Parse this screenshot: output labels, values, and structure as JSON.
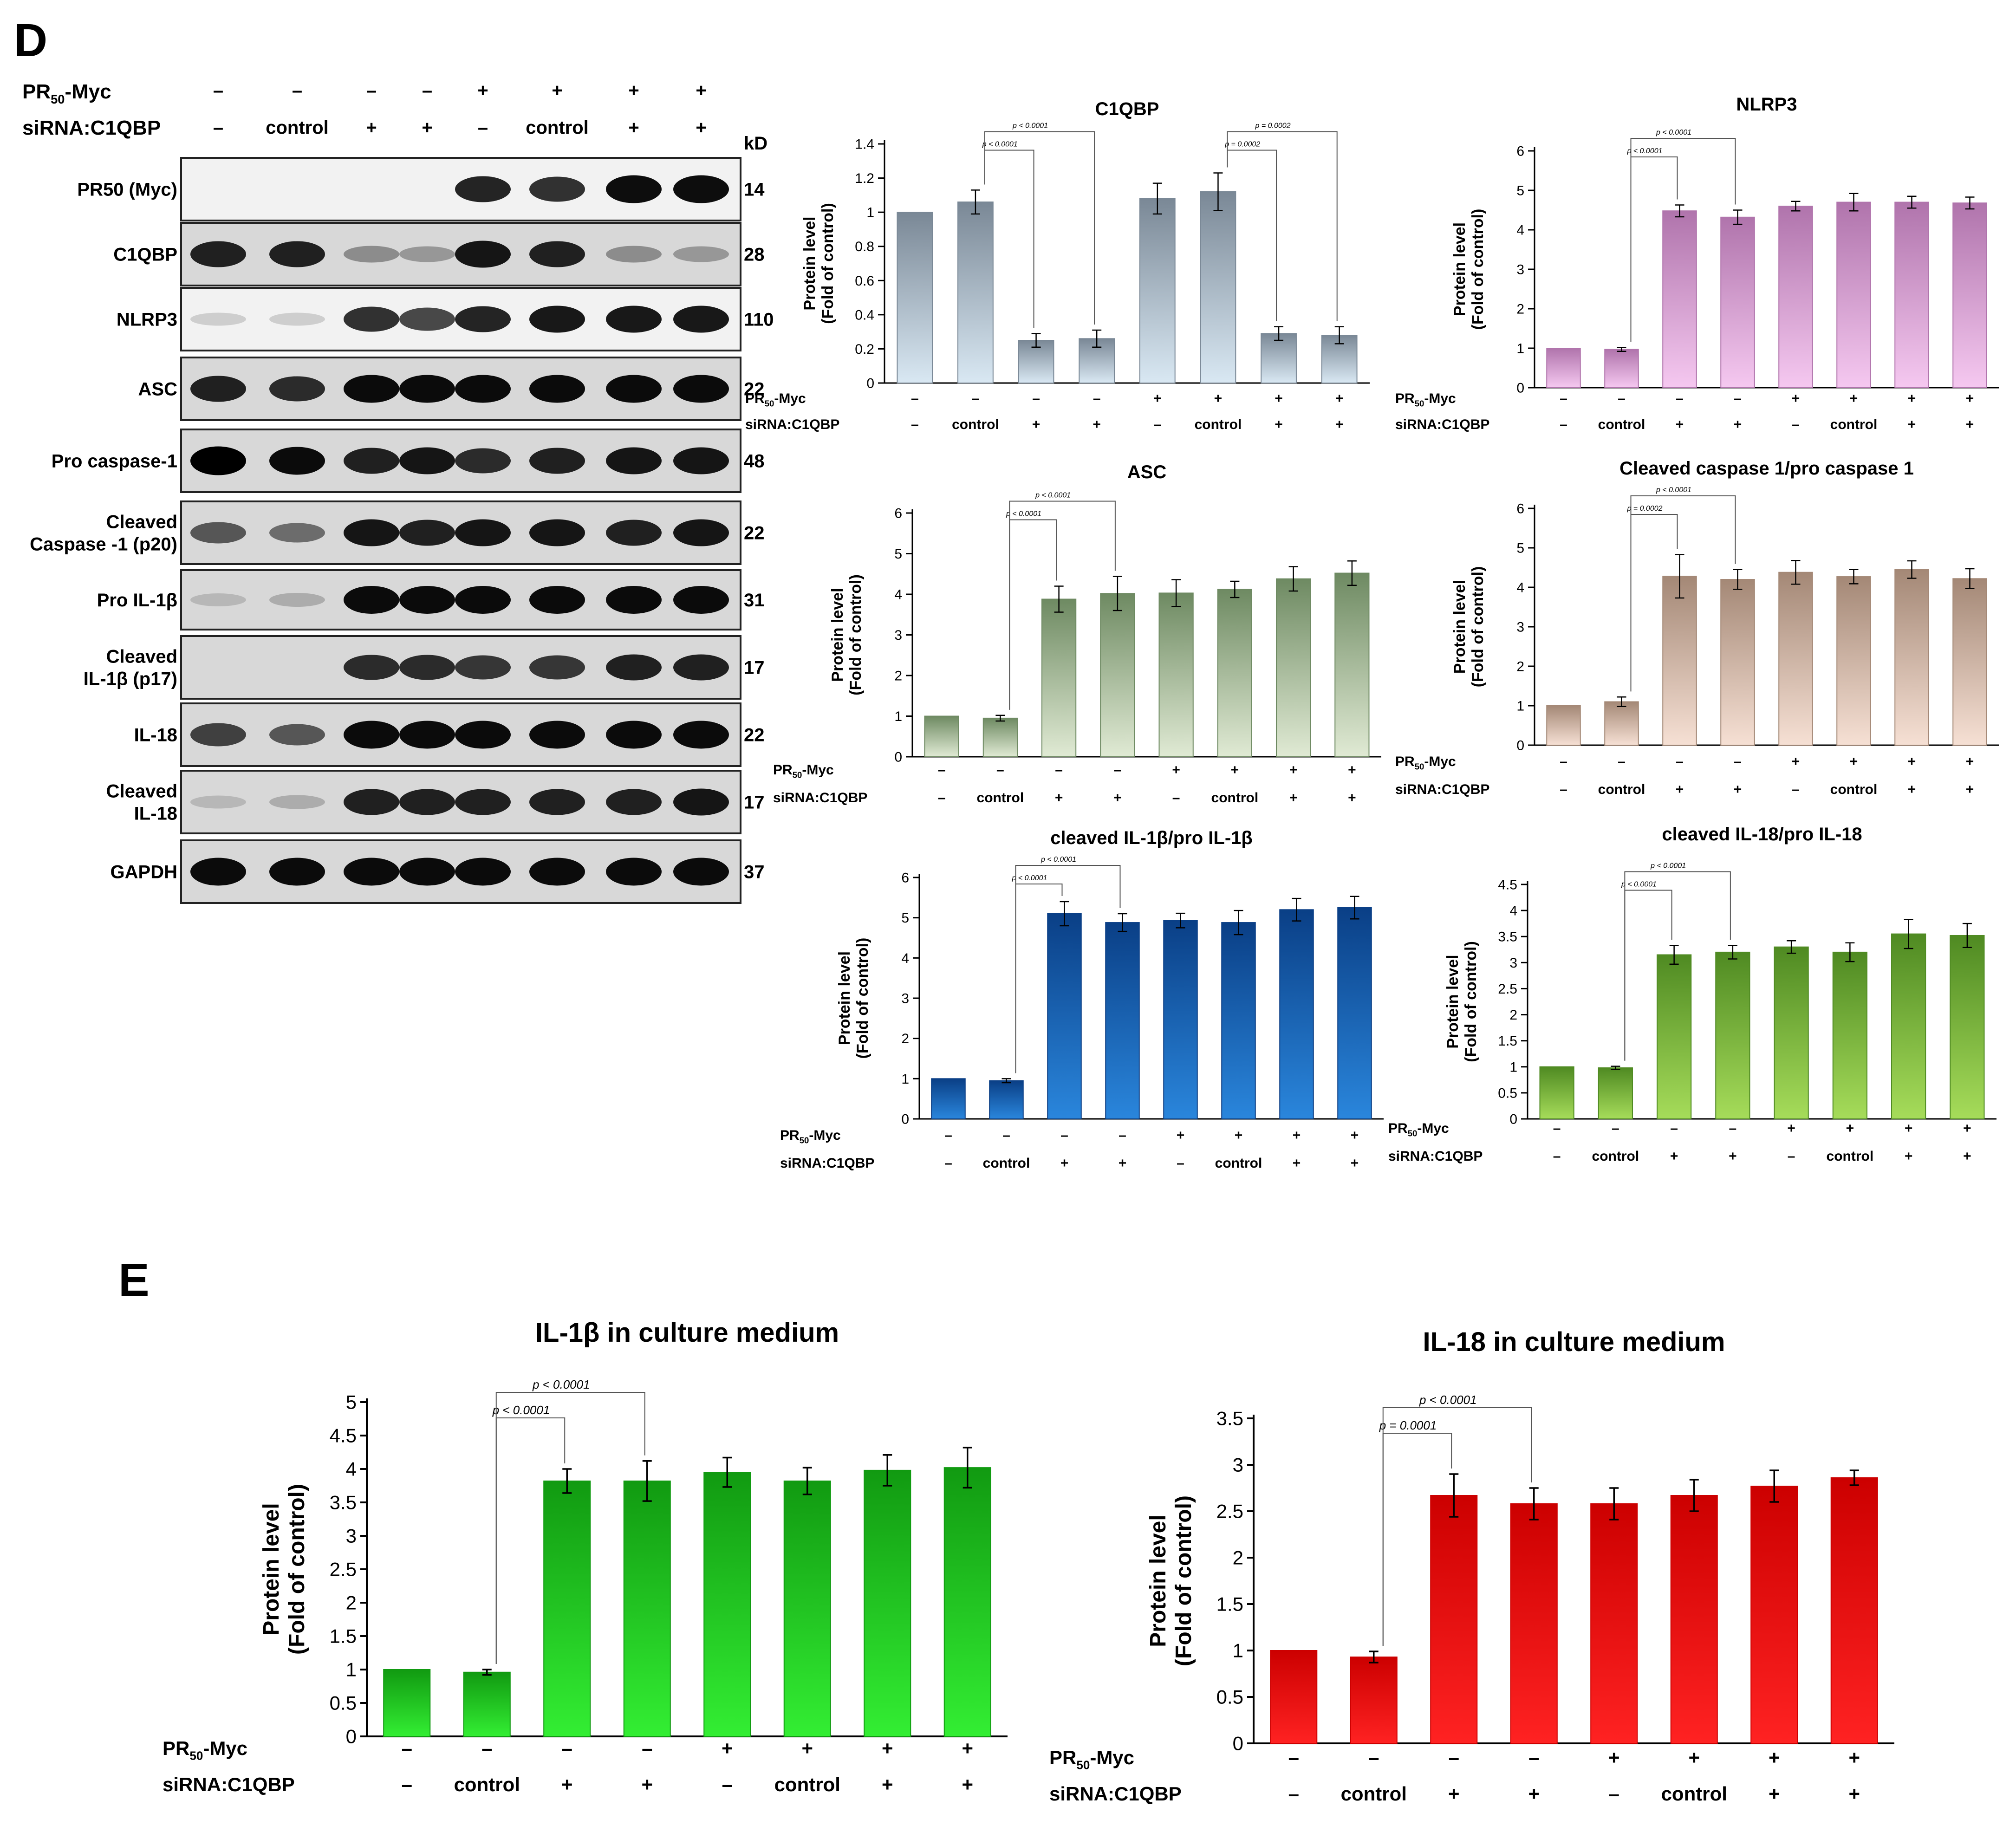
{
  "panels": {
    "d_label": "D",
    "e_label": "E"
  },
  "western_blot": {
    "header_rows": [
      {
        "label": "PR",
        "sub": "50",
        "suffix": "-Myc",
        "values": [
          "–",
          "–",
          "–",
          "–",
          "+",
          "+",
          "+",
          "+"
        ]
      },
      {
        "label": "siRNA:C1QBP",
        "sub": "",
        "suffix": "",
        "values": [
          "–",
          "control",
          "+",
          "+",
          "–",
          "control",
          "+",
          "+"
        ]
      }
    ],
    "kd_header": "kD",
    "blots": [
      {
        "label": "PR50 (Myc)",
        "kd": "14",
        "bands": [
          0,
          0,
          0,
          0,
          0.85,
          0.8,
          0.95,
          0.95
        ]
      },
      {
        "label": "C1QBP",
        "kd": "28",
        "bands": [
          0.85,
          0.85,
          0.35,
          0.3,
          0.9,
          0.85,
          0.35,
          0.3
        ]
      },
      {
        "label": "NLRP3",
        "kd": "110",
        "bands": [
          0.15,
          0.15,
          0.8,
          0.7,
          0.85,
          0.9,
          0.9,
          0.9
        ]
      },
      {
        "label": "ASC",
        "kd": "22",
        "bands": [
          0.85,
          0.8,
          0.95,
          0.95,
          0.95,
          0.95,
          0.95,
          0.95
        ]
      },
      {
        "label": "Pro caspase-1",
        "kd": "48",
        "bands": [
          1,
          0.95,
          0.85,
          0.9,
          0.8,
          0.85,
          0.9,
          0.9
        ]
      },
      {
        "label": "Cleaved\nCaspase -1 (p20)",
        "kd": "22",
        "bands": [
          0.6,
          0.5,
          0.9,
          0.85,
          0.9,
          0.9,
          0.85,
          0.9
        ]
      },
      {
        "label": "Pro IL-1β",
        "kd": "31",
        "bands": [
          0.15,
          0.2,
          0.95,
          0.95,
          0.95,
          0.95,
          0.95,
          0.95
        ]
      },
      {
        "label": "Cleaved\nIL-1β (p17)",
        "kd": "17",
        "bands": [
          0,
          0,
          0.8,
          0.8,
          0.75,
          0.75,
          0.85,
          0.85
        ]
      },
      {
        "label": "IL-18",
        "kd": "22",
        "bands": [
          0.7,
          0.6,
          0.95,
          0.95,
          0.95,
          0.95,
          0.95,
          0.95
        ]
      },
      {
        "label": "Cleaved\nIL-18",
        "kd": "17",
        "bands": [
          0.15,
          0.2,
          0.85,
          0.85,
          0.85,
          0.85,
          0.85,
          0.9
        ]
      },
      {
        "label": "GAPDH",
        "kd": "37",
        "bands": [
          0.95,
          0.95,
          0.95,
          0.95,
          0.95,
          0.95,
          0.95,
          0.95
        ]
      }
    ]
  },
  "chart_data": [
    {
      "type": "bar",
      "title": "C1QBP",
      "ylabel": "Protein level\n(Fold of control)",
      "ylim": [
        0,
        1.4
      ],
      "yticks": [
        "0",
        "0.2",
        "0.4",
        "0.6",
        "0.8",
        "1",
        "1.2",
        "1.4"
      ],
      "values": [
        1,
        1.06,
        0.25,
        0.26,
        1.08,
        1.12,
        0.29,
        0.28
      ],
      "errors": [
        0,
        0.07,
        0.04,
        0.05,
        0.09,
        0.11,
        0.04,
        0.05
      ],
      "colors": [
        "#7a8896",
        "#d9e8f3"
      ],
      "pvals": [
        {
          "from": 1,
          "to": 2,
          "text": "p < 0.0001"
        },
        {
          "from": 1,
          "to": 3,
          "text": "p < 0.0001"
        },
        {
          "from": 5,
          "to": 6,
          "text": "p = 0.0002"
        },
        {
          "from": 5,
          "to": 7,
          "text": "p = 0.0002"
        }
      ]
    },
    {
      "type": "bar",
      "title": "NLRP3",
      "ylabel": "Protein level\n(Fold of control)",
      "ylim": [
        0,
        6
      ],
      "yticks": [
        "0",
        "1",
        "2",
        "3",
        "4",
        "5",
        "6"
      ],
      "values": [
        1,
        0.97,
        4.48,
        4.32,
        4.6,
        4.7,
        4.7,
        4.68
      ],
      "errors": [
        0,
        0.05,
        0.15,
        0.18,
        0.12,
        0.22,
        0.15,
        0.15
      ],
      "colors": [
        "#b074ac",
        "#f5c8f0"
      ],
      "pvals": [
        {
          "from": 1,
          "to": 2,
          "text": "p < 0.0001"
        },
        {
          "from": 1,
          "to": 3,
          "text": "p < 0.0001"
        }
      ]
    },
    {
      "type": "bar",
      "title": "ASC",
      "ylabel": "Protein level\n(Fold of control)",
      "ylim": [
        0,
        6
      ],
      "yticks": [
        "0",
        "1",
        "2",
        "3",
        "4",
        "5",
        "6"
      ],
      "values": [
        1,
        0.95,
        3.88,
        4.02,
        4.03,
        4.12,
        4.38,
        4.52
      ],
      "errors": [
        0,
        0.07,
        0.32,
        0.42,
        0.33,
        0.2,
        0.3,
        0.3
      ],
      "colors": [
        "#6e8a62",
        "#e0ead4"
      ],
      "pvals": [
        {
          "from": 1,
          "to": 2,
          "text": "p < 0.0001"
        },
        {
          "from": 1,
          "to": 3,
          "text": "p < 0.0001"
        }
      ]
    },
    {
      "type": "bar",
      "title": "Cleaved caspase 1/pro caspase 1",
      "ylabel": "Protein level\n(Fold of control)",
      "ylim": [
        0,
        6
      ],
      "yticks": [
        "0",
        "1",
        "2",
        "3",
        "4",
        "5",
        "6"
      ],
      "values": [
        1,
        1.1,
        4.28,
        4.2,
        4.38,
        4.27,
        4.45,
        4.22
      ],
      "errors": [
        0,
        0.12,
        0.55,
        0.25,
        0.3,
        0.18,
        0.22,
        0.25
      ],
      "colors": [
        "#a48876",
        "#f6e0d4"
      ],
      "pvals": [
        {
          "from": 1,
          "to": 2,
          "text": "p = 0.0002"
        },
        {
          "from": 1,
          "to": 3,
          "text": "p < 0.0001"
        }
      ]
    },
    {
      "type": "bar",
      "title": "cleaved IL-1β/pro IL-1β",
      "ylabel": "Protein level\n(Fold of control)",
      "ylim": [
        0,
        6
      ],
      "yticks": [
        "0",
        "1",
        "2",
        "3",
        "4",
        "5",
        "6"
      ],
      "values": [
        1,
        0.95,
        5.1,
        4.88,
        4.93,
        4.88,
        5.2,
        5.25
      ],
      "errors": [
        0,
        0.05,
        0.3,
        0.22,
        0.18,
        0.3,
        0.28,
        0.28
      ],
      "colors": [
        "#0a3f86",
        "#2a86dc"
      ],
      "pvals": [
        {
          "from": 1,
          "to": 2,
          "text": "p < 0.0001"
        },
        {
          "from": 1,
          "to": 3,
          "text": "p < 0.0001"
        }
      ]
    },
    {
      "type": "bar",
      "title": "cleaved IL-18/pro IL-18",
      "ylabel": "Protein level\n(Fold of control)",
      "ylim": [
        0,
        4.5
      ],
      "yticks": [
        "0",
        "0.5",
        "1",
        "1.5",
        "2",
        "2.5",
        "3",
        "3.5",
        "4",
        "4.5"
      ],
      "values": [
        1,
        0.98,
        3.15,
        3.2,
        3.3,
        3.2,
        3.55,
        3.52
      ],
      "errors": [
        0,
        0.03,
        0.18,
        0.13,
        0.12,
        0.18,
        0.28,
        0.23
      ],
      "colors": [
        "#4f8a22",
        "#a6dc5a"
      ],
      "pvals": [
        {
          "from": 1,
          "to": 2,
          "text": "p < 0.0001"
        },
        {
          "from": 1,
          "to": 3,
          "text": "p < 0.0001"
        }
      ]
    },
    {
      "type": "bar",
      "title": "IL-1β in culture medium",
      "ylabel": "Protein level\n(Fold of control)",
      "ylim": [
        0,
        5
      ],
      "yticks": [
        "0",
        "0.5",
        "1",
        "1.5",
        "2",
        "2.5",
        "3",
        "3.5",
        "4",
        "4.5",
        "5"
      ],
      "values": [
        1,
        0.96,
        3.82,
        3.82,
        3.95,
        3.82,
        3.98,
        4.02
      ],
      "errors": [
        0,
        0.04,
        0.18,
        0.3,
        0.22,
        0.2,
        0.23,
        0.3
      ],
      "colors": [
        "#119a11",
        "#33ee33"
      ],
      "pvals": [
        {
          "from": 1,
          "to": 2,
          "text": "p < 0.0001"
        },
        {
          "from": 1,
          "to": 3,
          "text": "p < 0.0001"
        }
      ]
    },
    {
      "type": "bar",
      "title": "IL-18 in culture medium",
      "ylabel": "Protein level\n(Fold of control)",
      "ylim": [
        0,
        3.5
      ],
      "yticks": [
        "0",
        "0.5",
        "1",
        "1.5",
        "2",
        "2.5",
        "3",
        "3.5"
      ],
      "values": [
        1,
        0.93,
        2.67,
        2.58,
        2.58,
        2.67,
        2.77,
        2.86
      ],
      "errors": [
        0,
        0.06,
        0.23,
        0.17,
        0.17,
        0.17,
        0.17,
        0.08
      ],
      "colors": [
        "#cc0000",
        "#ff2222"
      ],
      "pvals": [
        {
          "from": 1,
          "to": 2,
          "text": "p = 0.0001"
        },
        {
          "from": 1,
          "to": 3,
          "text": "p < 0.0001"
        }
      ]
    }
  ],
  "x_conditions": {
    "row1_label": "PR",
    "row1_sub": "50",
    "row1_suffix": "-Myc",
    "row1": [
      "–",
      "–",
      "–",
      "–",
      "+",
      "+",
      "+",
      "+"
    ],
    "row2_label": "siRNA:C1QBP",
    "row2": [
      "–",
      "control",
      "+",
      "+",
      "–",
      "control",
      "+",
      "+"
    ]
  }
}
